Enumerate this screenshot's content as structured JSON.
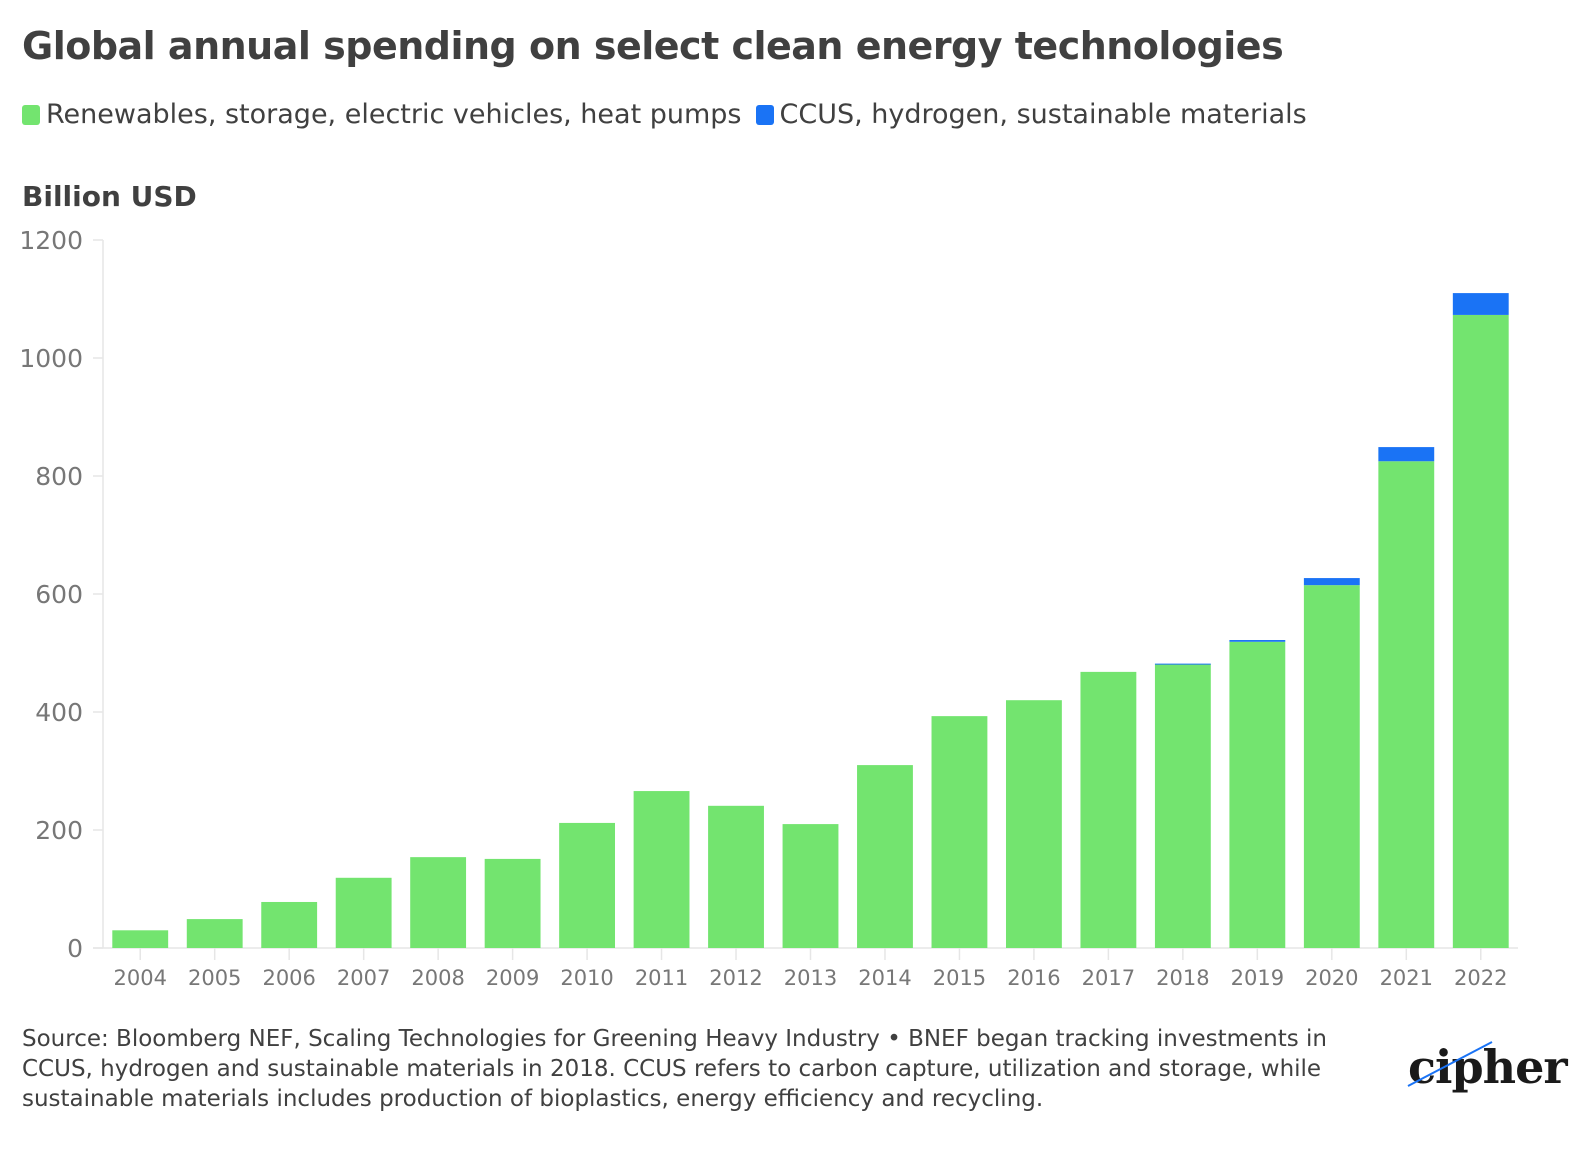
{
  "header": {
    "title": "Global annual spending on select clean energy technologies"
  },
  "legend": [
    {
      "label": "Renewables, storage, electric vehicles, heat pumps",
      "color": "#73e46f"
    },
    {
      "label": "CCUS, hydrogen, sustainable materials",
      "color": "#1a73f5"
    }
  ],
  "footer": {
    "text": "Source: Bloomberg NEF, Scaling Technologies for Greening Heavy Industry • BNEF began tracking investments in CCUS, hydrogen and sustainable materials in 2018. CCUS refers to carbon capture, utilization and storage, while sustainable materials includes production of bioplastics, energy efficiency and recycling."
  },
  "logo": {
    "text": "cipher",
    "accent_color": "#1a73f5"
  },
  "chart_data": {
    "type": "bar",
    "stacked": true,
    "title": "Global annual spending on select clean energy technologies",
    "xlabel": "",
    "ylabel": "Billion USD",
    "ylim": [
      0,
      1200
    ],
    "yticks": [
      0,
      200,
      400,
      600,
      800,
      1000,
      1200
    ],
    "grid": false,
    "legend_position": "top-left",
    "categories": [
      "2004",
      "2005",
      "2006",
      "2007",
      "2008",
      "2009",
      "2010",
      "2011",
      "2012",
      "2013",
      "2014",
      "2015",
      "2016",
      "2017",
      "2018",
      "2019",
      "2020",
      "2021",
      "2022"
    ],
    "series": [
      {
        "name": "Renewables, storage, electric vehicles, heat pumps",
        "color": "#73e46f",
        "values": [
          30,
          49,
          78,
          119,
          154,
          151,
          212,
          266,
          241,
          210,
          310,
          393,
          420,
          468,
          481,
          519,
          615,
          825,
          1073
        ]
      },
      {
        "name": "CCUS, hydrogen, sustainable materials",
        "color": "#1a73f5",
        "values": [
          0,
          0,
          0,
          0,
          0,
          0,
          0,
          0,
          0,
          0,
          0,
          0,
          0,
          0,
          1,
          3,
          12,
          24,
          37
        ]
      }
    ]
  }
}
